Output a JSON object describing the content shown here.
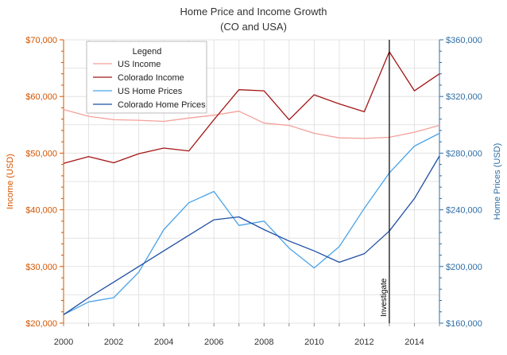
{
  "chart_data": {
    "type": "line",
    "title": "Home Price and Income Growth",
    "subtitle": "(CO and USA)",
    "x": [
      2000,
      2001,
      2002,
      2003,
      2004,
      2005,
      2006,
      2007,
      2008,
      2009,
      2010,
      2011,
      2012,
      2013,
      2014,
      2015
    ],
    "x_ticks": [
      "2000",
      "2002",
      "2004",
      "2006",
      "2008",
      "2010",
      "2012",
      "2014"
    ],
    "xlim": [
      2000,
      2015
    ],
    "left_axis": {
      "label": "Income (USD)",
      "ylim": [
        20000,
        70000
      ],
      "ticks": [
        "$20,000",
        "$30,000",
        "$40,000",
        "$50,000",
        "$60,000",
        "$70,000"
      ]
    },
    "right_axis": {
      "label": "Home Prices (USD)",
      "ylim": [
        160000,
        360000
      ],
      "ticks": [
        "$160,000",
        "$200,000",
        "$240,000",
        "$280,000",
        "$320,000",
        "$360,000"
      ]
    },
    "series": [
      {
        "name": "US Income",
        "axis": "left",
        "color": "#f4a09a",
        "values": [
          57700,
          56500,
          55900,
          55800,
          55600,
          56200,
          56700,
          57400,
          55300,
          54900,
          53500,
          52700,
          52600,
          52800,
          53700,
          54900
        ]
      },
      {
        "name": "Colorado Income",
        "axis": "left",
        "color": "#a31515",
        "values": [
          48200,
          49400,
          48300,
          49900,
          50900,
          50400,
          55900,
          61200,
          61000,
          55900,
          60300,
          58700,
          57300,
          67900,
          61000,
          64000
        ]
      },
      {
        "name": "US Home Prices",
        "axis": "right",
        "color": "#4aa3e8",
        "values": [
          166000,
          175000,
          178000,
          196000,
          226000,
          245000,
          253000,
          229000,
          232000,
          213000,
          199000,
          214000,
          241000,
          266000,
          285000,
          294000
        ]
      },
      {
        "name": "Colorado Home Prices",
        "axis": "right",
        "color": "#1f4fa3",
        "values": [
          166000,
          178000,
          189000,
          200000,
          211000,
          222000,
          233000,
          235000,
          226000,
          218000,
          211000,
          203000,
          209000,
          225000,
          248000,
          278000
        ]
      }
    ],
    "vertical_marker": {
      "x": 2013,
      "label": "Investigate"
    },
    "legend": {
      "title": "Legend",
      "placement": "top-left"
    },
    "grid": true,
    "colors": {
      "left_axis": "#d35400",
      "right_axis": "#2e6da4",
      "grid": "#e3e3e3"
    }
  }
}
